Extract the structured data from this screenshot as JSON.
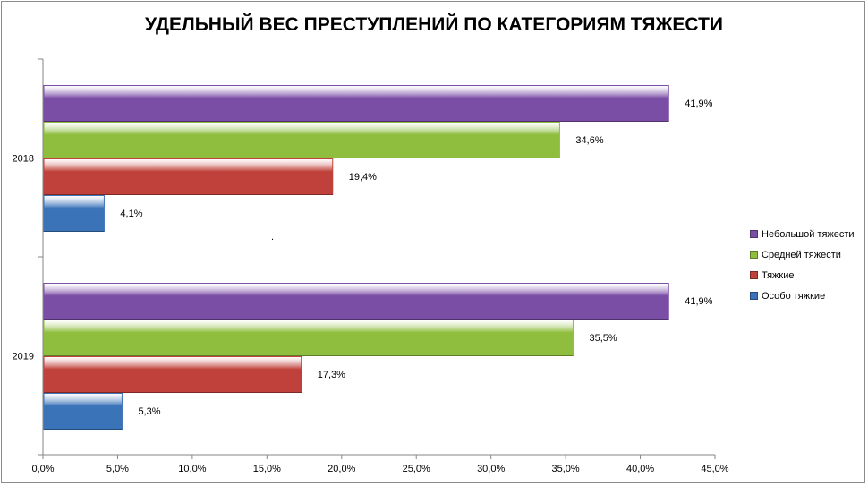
{
  "chart_data": {
    "type": "bar",
    "orientation": "horizontal",
    "title": "УДЕЛЬНЫЙ ВЕС ПРЕСТУПЛЕНИЙ ПО КАТЕГОРИЯМ ТЯЖЕСТИ",
    "categories": [
      "2018",
      "2019"
    ],
    "series": [
      {
        "name": "Небольшой тяжести",
        "color": "#7b4ea6",
        "values": [
          41.9,
          41.9
        ],
        "labels": [
          "41,9%",
          "41,9%"
        ]
      },
      {
        "name": "Средней тяжести",
        "color": "#8fbe3f",
        "values": [
          34.6,
          35.5
        ],
        "labels": [
          "34,6%",
          "35,5%"
        ]
      },
      {
        "name": "Тяжкие",
        "color": "#c0413b",
        "values": [
          19.4,
          17.3
        ],
        "labels": [
          "19,4%",
          "17,3%"
        ]
      },
      {
        "name": "Особо тяжкие",
        "color": "#3a73b8",
        "values": [
          4.1,
          5.3
        ],
        "labels": [
          "4,1%",
          "5,3%"
        ]
      }
    ],
    "xlim": [
      0,
      45
    ],
    "xticks": [
      "0,0%",
      "5,0%",
      "10,0%",
      "15,0%",
      "20,0%",
      "25,0%",
      "30,0%",
      "35,0%",
      "40,0%",
      "45,0%"
    ],
    "legend_position": "right",
    "grid": false,
    "annotation": "."
  }
}
